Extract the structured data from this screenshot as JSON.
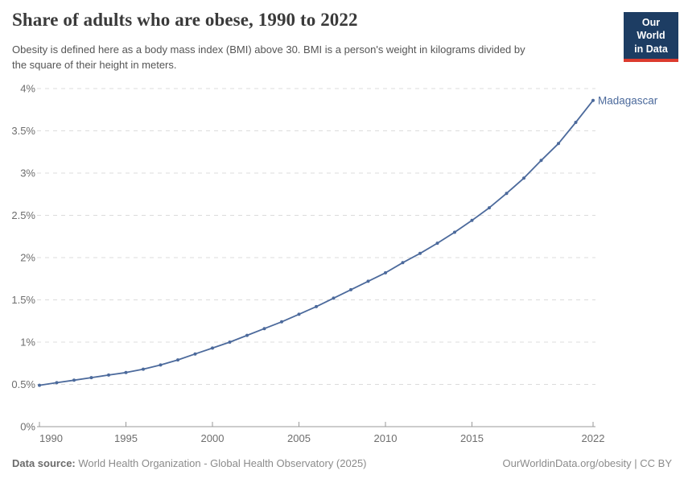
{
  "header": {
    "title": "Share of adults who are obese, 1990 to 2022",
    "subtitle_line1": "Obesity is defined here as a body mass index (BMI) above 30. BMI is a person's weight in kilograms divided by",
    "subtitle_line2": "the square of their height in meters."
  },
  "logo": {
    "line1": "Our World",
    "line2": "in Data",
    "bg_color": "#1d3d63",
    "accent_color": "#dc3b2e"
  },
  "chart_data": {
    "type": "line",
    "title": "Share of adults who are obese, 1990 to 2022",
    "xlabel": "",
    "ylabel": "",
    "xlim": [
      1990,
      2022
    ],
    "ylim": [
      0,
      4
    ],
    "grid": "horizontal-dashed",
    "legend_position": "end-of-line-label",
    "x_ticks": [
      1990,
      1995,
      2000,
      2005,
      2010,
      2015,
      2022
    ],
    "y_ticks": [
      "0%",
      "0.5%",
      "1%",
      "1.5%",
      "2%",
      "2.5%",
      "3%",
      "3.5%",
      "4%"
    ],
    "y_tick_values": [
      0,
      0.5,
      1,
      1.5,
      2,
      2.5,
      3,
      3.5,
      4
    ],
    "series": [
      {
        "name": "Madagascar",
        "color": "#4c6a9c",
        "x": [
          1990,
          1991,
          1992,
          1993,
          1994,
          1995,
          1996,
          1997,
          1998,
          1999,
          2000,
          2001,
          2002,
          2003,
          2004,
          2005,
          2006,
          2007,
          2008,
          2009,
          2010,
          2011,
          2012,
          2013,
          2014,
          2015,
          2016,
          2017,
          2018,
          2019,
          2020,
          2021,
          2022
        ],
        "values": [
          0.49,
          0.52,
          0.55,
          0.58,
          0.61,
          0.64,
          0.68,
          0.73,
          0.79,
          0.86,
          0.93,
          1.0,
          1.08,
          1.16,
          1.24,
          1.33,
          1.42,
          1.52,
          1.62,
          1.72,
          1.82,
          1.94,
          2.05,
          2.17,
          2.3,
          2.44,
          2.59,
          2.76,
          2.94,
          3.15,
          3.35,
          3.6,
          3.86
        ]
      }
    ],
    "colors": {
      "line": "#4c6a9c",
      "gridline": "#dcdcdc",
      "axis": "#999999",
      "tick_label": "#6e6e6e"
    }
  },
  "footer": {
    "source_label": "Data source:",
    "source_text": " World Health Organization - Global Health Observatory (2025)",
    "rights": "OurWorldinData.org/obesity | CC BY"
  }
}
